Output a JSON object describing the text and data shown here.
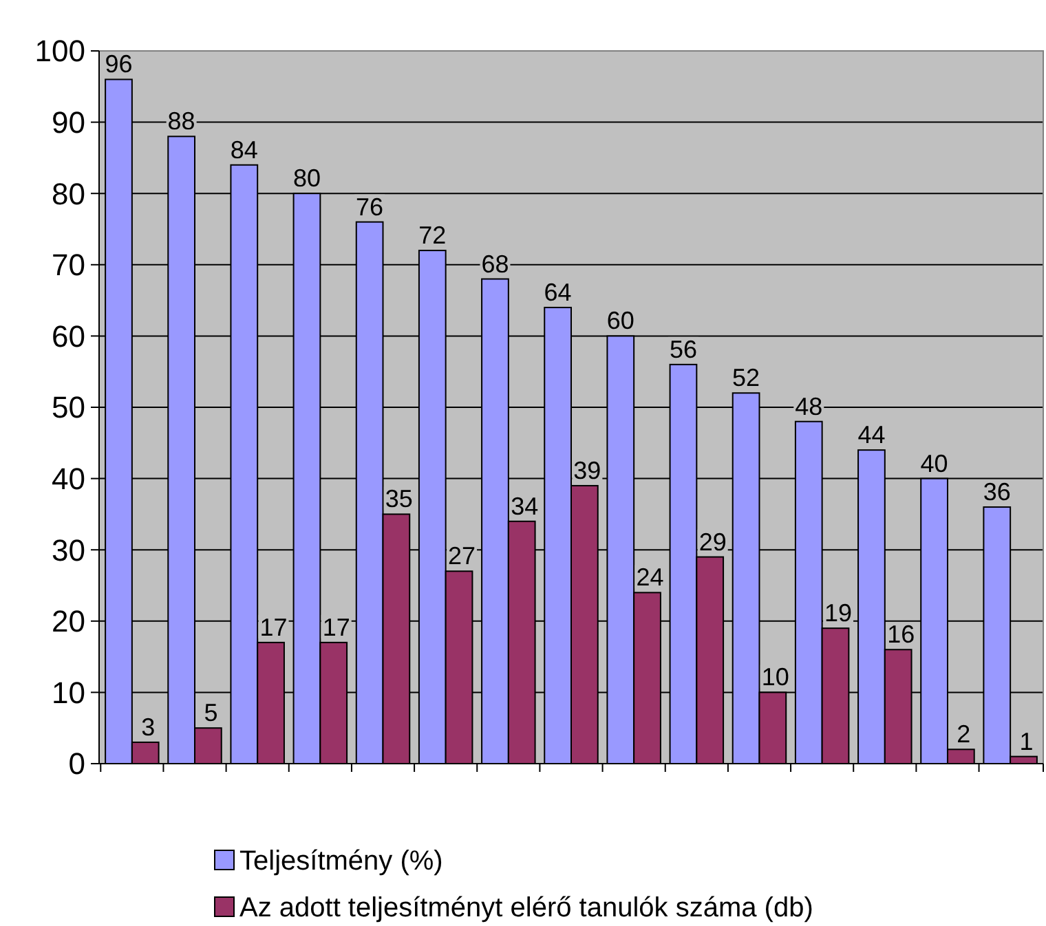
{
  "chart_data": {
    "type": "bar",
    "categories": [
      null,
      null,
      null,
      null,
      null,
      null,
      null,
      null,
      null,
      null,
      null,
      null,
      null,
      null,
      null
    ],
    "series": [
      {
        "name": "Teljesítmény (%)",
        "color": "#9999ff",
        "values": [
          96,
          88,
          84,
          80,
          76,
          72,
          68,
          64,
          60,
          56,
          52,
          48,
          44,
          40,
          36
        ]
      },
      {
        "name": "Az adott teljesítményt elérő tanulók száma (db)",
        "color": "#993366",
        "values": [
          3,
          5,
          17,
          17,
          35,
          27,
          34,
          39,
          24,
          29,
          10,
          19,
          16,
          2,
          1
        ]
      }
    ],
    "ylim": [
      0,
      100
    ],
    "yticks": [
      0,
      10,
      20,
      30,
      40,
      50,
      60,
      70,
      80,
      90,
      100
    ],
    "grid": "y",
    "legend": "bottom",
    "data_labels": true
  }
}
